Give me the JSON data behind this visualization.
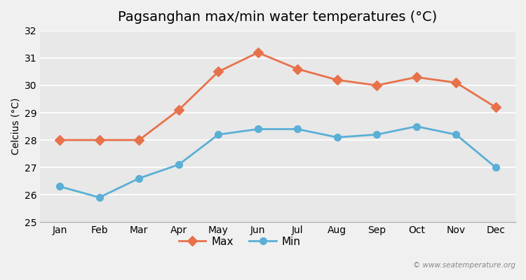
{
  "title": "Pagsanghan max/min water temperatures (°C)",
  "ylabel": "Celcius (°C)",
  "months": [
    "Jan",
    "Feb",
    "Mar",
    "Apr",
    "May",
    "Jun",
    "Jul",
    "Aug",
    "Sep",
    "Oct",
    "Nov",
    "Dec"
  ],
  "max_temps": [
    28.0,
    28.0,
    28.0,
    29.1,
    30.5,
    31.2,
    30.6,
    30.2,
    30.0,
    30.3,
    30.1,
    29.2
  ],
  "min_temps": [
    26.3,
    25.9,
    26.6,
    27.1,
    28.2,
    28.4,
    28.4,
    28.1,
    28.2,
    28.5,
    28.2,
    27.0
  ],
  "max_color": "#e8714a",
  "min_color": "#5aafd6",
  "bg_color": "#f0f0f0",
  "plot_bg_color": "#e8e8e8",
  "ylim": [
    25,
    32
  ],
  "yticks": [
    25,
    26,
    27,
    28,
    29,
    30,
    31,
    32
  ],
  "watermark": "© www.seatemperature.org",
  "legend_max": "Max",
  "legend_min": "Min"
}
